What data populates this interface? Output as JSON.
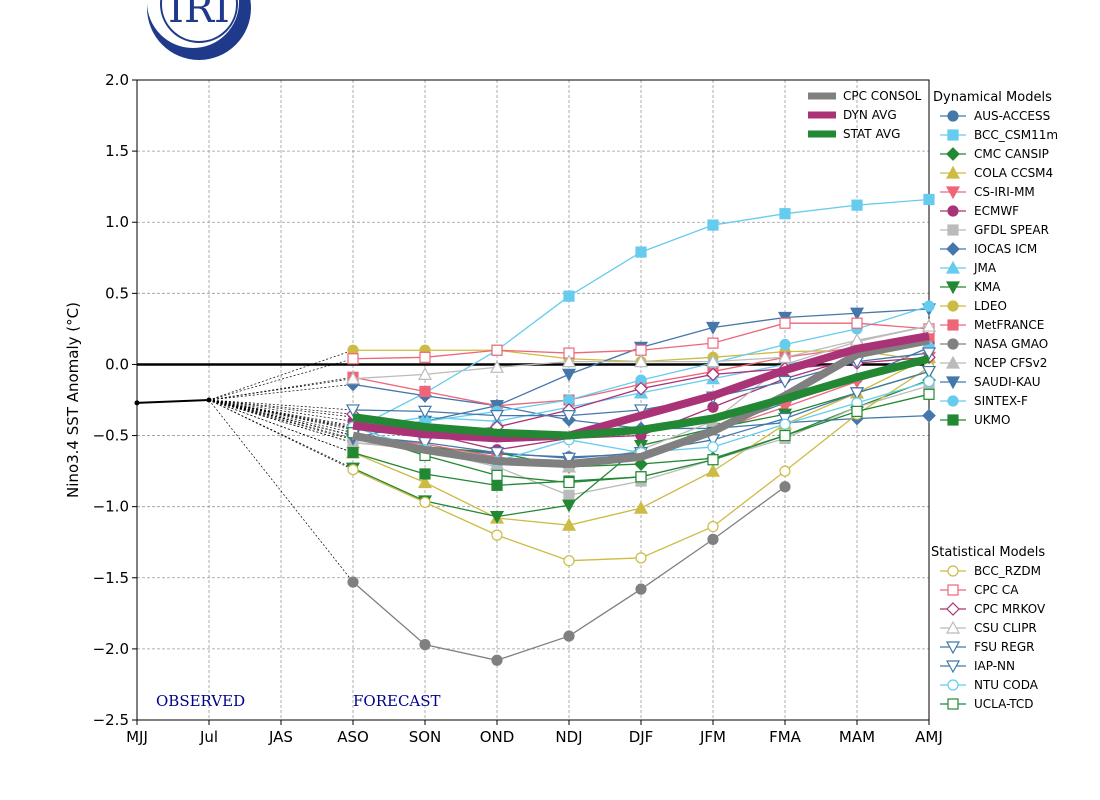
{
  "logo_text": "IRI",
  "chart_data": {
    "type": "line",
    "ylabel": "Nino3.4 SST Anomaly (°C)",
    "ylim": [
      -2.5,
      2.0
    ],
    "yticks": [
      2.0,
      1.5,
      1.0,
      0.5,
      0.0,
      -0.5,
      -1.0,
      -1.5,
      -2.0,
      -2.5
    ],
    "ytick_labels": [
      "2.0",
      "1.5",
      "1.0",
      "0.5",
      "0.0",
      "−0.5",
      "−1.0",
      "−1.5",
      "−2.0",
      "−2.5"
    ],
    "categories": [
      "MJJ",
      "Jul",
      "JAS",
      "ASO",
      "SON",
      "OND",
      "NDJ",
      "DJF",
      "JFM",
      "FMA",
      "MAM",
      "AMJ"
    ],
    "grid": true,
    "observed_label": "OBSERVED",
    "forecast_label": "FORECAST",
    "observed": {
      "categories": [
        "MJJ",
        "Jul"
      ],
      "values": [
        -0.27,
        -0.25
      ],
      "color": "#000000"
    },
    "forecast_categories": [
      "ASO",
      "SON",
      "OND",
      "NDJ",
      "DJF",
      "JFM",
      "FMA",
      "MAM",
      "AMJ"
    ],
    "averages": [
      {
        "name": "CPC CONSOL",
        "color": "#808080",
        "values": [
          -0.5,
          -0.6,
          -0.68,
          -0.7,
          -0.65,
          -0.47,
          -0.22,
          0.07,
          0.17
        ]
      },
      {
        "name": "DYN AVG",
        "color": "#aa3377",
        "values": [
          -0.43,
          -0.49,
          -0.52,
          -0.5,
          -0.36,
          -0.22,
          -0.04,
          0.11,
          0.2
        ]
      },
      {
        "name": "STAT AVG",
        "color": "#228833",
        "values": [
          -0.37,
          -0.44,
          -0.48,
          -0.5,
          -0.46,
          -0.38,
          -0.24,
          -0.09,
          0.04
        ]
      }
    ],
    "dynamical_title": "Dynamical Models",
    "dynamical": [
      {
        "name": "AUS-ACCESS",
        "color": "#4477aa",
        "marker": "circle",
        "filled": true,
        "values": [
          -0.53,
          -0.58,
          -0.63,
          -0.65,
          -0.63,
          -0.46,
          -0.27,
          -0.1,
          0.12
        ]
      },
      {
        "name": "BCC_CSM11m",
        "color": "#66ccee",
        "marker": "square",
        "filled": true,
        "values": [
          -0.46,
          -0.2,
          0.1,
          0.48,
          0.79,
          0.98,
          1.06,
          1.12,
          1.16
        ]
      },
      {
        "name": "CMC CANSIP",
        "color": "#228833",
        "marker": "diamond",
        "filled": true,
        "values": [
          -0.5,
          -0.58,
          -0.62,
          -0.72,
          -0.7,
          -0.66,
          -0.5,
          -0.3,
          -0.11
        ]
      },
      {
        "name": "COLA CCSM4",
        "color": "#ccbb44",
        "marker": "triangle-up",
        "filled": true,
        "values": [
          -0.62,
          -0.83,
          -1.08,
          -1.13,
          -1.01,
          -0.75,
          -0.42,
          -0.2,
          0.05
        ]
      },
      {
        "name": "CS-IRI-MM",
        "color": "#ee6677",
        "marker": "triangle-down",
        "filled": true,
        "values": [
          -0.5,
          -0.56,
          -0.65,
          -0.72,
          -0.62,
          -0.47,
          -0.3,
          -0.12,
          0.05
        ]
      },
      {
        "name": "ECMWF",
        "color": "#aa3377",
        "marker": "circle",
        "filled": true,
        "values": [
          -0.4,
          -0.48,
          -0.6,
          -0.52,
          -0.5,
          -0.3,
          -0.1,
          0.05,
          0.15
        ]
      },
      {
        "name": "GFDL SPEAR",
        "color": "#bbbbbb",
        "marker": "square",
        "filled": true,
        "values": [
          -0.55,
          -0.6,
          -0.72,
          -0.92,
          -0.82,
          -0.67,
          -0.52,
          -0.3,
          -0.15
        ]
      },
      {
        "name": "IOCAS ICM",
        "color": "#4477aa",
        "marker": "diamond",
        "filled": true,
        "values": [
          -0.14,
          -0.22,
          -0.29,
          -0.39,
          -0.45,
          -0.45,
          -0.41,
          -0.38,
          -0.36
        ]
      },
      {
        "name": "JMA",
        "color": "#66ccee",
        "marker": "triangle-up",
        "filled": true,
        "values": [
          -0.45,
          -0.37,
          -0.4,
          -0.3,
          -0.2,
          -0.1,
          0.0,
          0.08,
          0.15
        ]
      },
      {
        "name": "KMA",
        "color": "#228833",
        "marker": "triangle-down",
        "filled": true,
        "values": [
          -0.73,
          -0.96,
          -1.07,
          -0.99,
          -0.57,
          -0.45,
          -0.35,
          -0.2,
          -0.05
        ]
      },
      {
        "name": "LDEO",
        "color": "#ccbb44",
        "marker": "circle",
        "filled": true,
        "values": [
          0.1,
          0.1,
          0.1,
          0.04,
          0.02,
          0.05,
          0.09,
          0.1,
          0.02
        ]
      },
      {
        "name": "MetFRANCE",
        "color": "#ee6677",
        "marker": "square",
        "filled": true,
        "values": [
          -0.09,
          -0.19,
          -0.29,
          -0.25,
          -0.14,
          -0.05,
          0.05,
          0.12,
          0.2
        ]
      },
      {
        "name": "NASA GMAO",
        "color": "#808080",
        "marker": "circle",
        "filled": true,
        "values": [
          -1.53,
          -1.97,
          -2.08,
          -1.91,
          -1.58,
          -1.23,
          -0.86,
          null,
          null
        ]
      },
      {
        "name": "NCEP CFSv2",
        "color": "#bbbbbb",
        "marker": "triangle-up",
        "filled": true,
        "values": [
          -0.55,
          -0.58,
          -0.7,
          -0.72,
          -0.6,
          -0.4,
          0.0,
          0.16,
          0.27
        ]
      },
      {
        "name": "SAUDI-KAU",
        "color": "#4477aa",
        "marker": "triangle-down",
        "filled": true,
        "values": [
          -0.52,
          -0.4,
          -0.29,
          -0.07,
          0.12,
          0.26,
          0.33,
          0.36,
          0.39
        ]
      },
      {
        "name": "SINTEX-F",
        "color": "#66ccee",
        "marker": "circle",
        "filled": true,
        "values": [
          -0.45,
          -0.4,
          -0.33,
          -0.25,
          -0.11,
          0.01,
          0.14,
          0.25,
          0.41
        ]
      },
      {
        "name": "UKMO",
        "color": "#228833",
        "marker": "square",
        "filled": true,
        "values": [
          -0.62,
          -0.77,
          -0.85,
          -0.82,
          -0.79,
          null,
          null,
          null,
          null
        ]
      }
    ],
    "statistical_title": "Statistical Models",
    "statistical": [
      {
        "name": "BCC_RZDM",
        "color": "#ccbb44",
        "marker": "circle",
        "filled": false,
        "values": [
          -0.74,
          -0.97,
          -1.2,
          -1.38,
          -1.36,
          -1.14,
          -0.75,
          -0.35,
          -0.02
        ]
      },
      {
        "name": "CPC CA",
        "color": "#ee6677",
        "marker": "square",
        "filled": false,
        "values": [
          0.04,
          0.05,
          0.1,
          0.08,
          0.1,
          0.15,
          0.29,
          0.29,
          0.25
        ]
      },
      {
        "name": "CPC MRKOV",
        "color": "#aa3377",
        "marker": "diamond",
        "filled": false,
        "values": [
          -0.35,
          -0.5,
          -0.44,
          -0.32,
          -0.17,
          -0.07,
          -0.03,
          0.01,
          0.05
        ]
      },
      {
        "name": "CSU CLIPR",
        "color": "#bbbbbb",
        "marker": "triangle-up",
        "filled": false,
        "values": [
          -0.1,
          -0.07,
          -0.02,
          0.02,
          0.02,
          0.02,
          0.05,
          0.17,
          0.27
        ]
      },
      {
        "name": "FSU REGR",
        "color": "#4477aa",
        "marker": "triangle-down",
        "filled": false,
        "values": [
          -0.32,
          -0.33,
          -0.36,
          -0.36,
          -0.32,
          -0.23,
          -0.12,
          0.02,
          0.08
        ]
      },
      {
        "name": "IAP-NN",
        "color": "#4477aa",
        "marker": "triangle-down",
        "filled": false,
        "values": [
          -0.5,
          -0.55,
          -0.62,
          -0.66,
          -0.62,
          -0.53,
          -0.38,
          -0.2,
          -0.05
        ]
      },
      {
        "name": "NTU CODA",
        "color": "#66ccee",
        "marker": "circle",
        "filled": false,
        "values": [
          -0.44,
          -0.6,
          -0.68,
          -0.53,
          -0.62,
          -0.58,
          -0.42,
          -0.27,
          -0.12
        ]
      },
      {
        "name": "UCLA-TCD",
        "color": "#228833",
        "marker": "square",
        "filled": false,
        "values": [
          -0.48,
          -0.64,
          -0.78,
          -0.83,
          -0.79,
          -0.67,
          -0.5,
          -0.33,
          -0.21
        ]
      }
    ]
  }
}
